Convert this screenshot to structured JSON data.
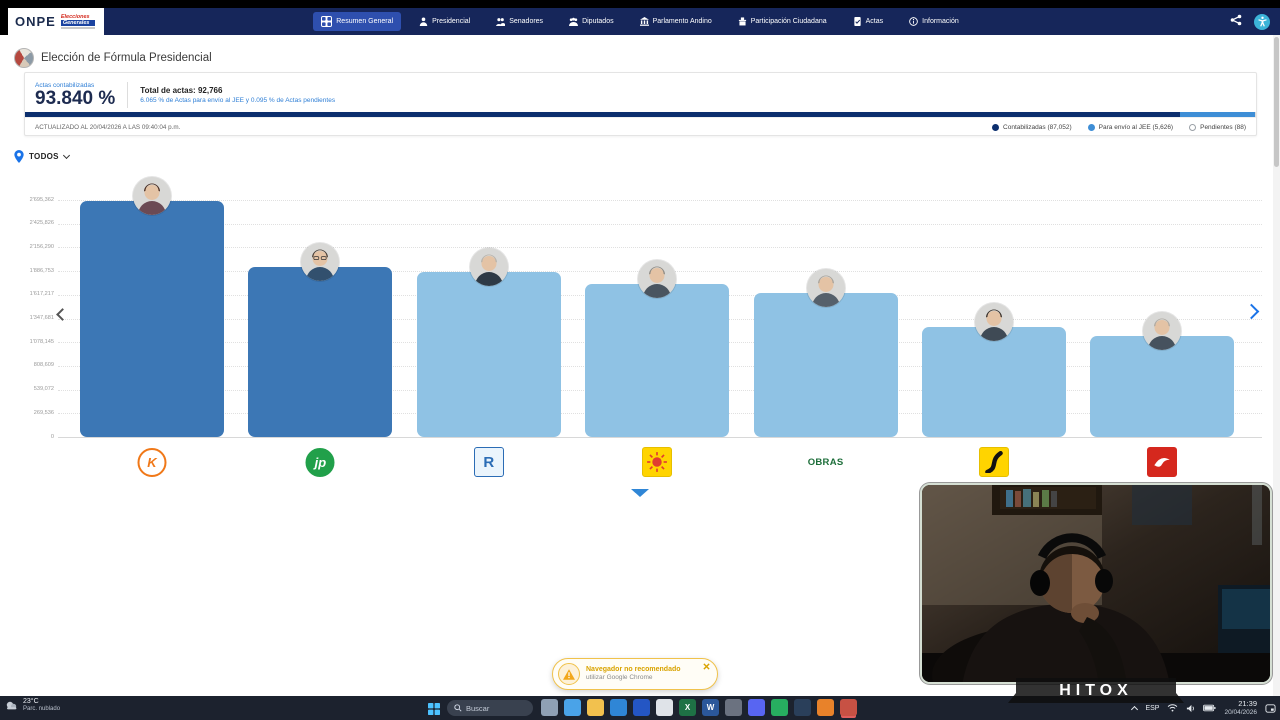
{
  "nav": {
    "brand": {
      "name": "ONPE",
      "badge_line1": "Elecciones",
      "badge_line2": "Generales"
    },
    "items": [
      {
        "label": "Resumen General",
        "active": true
      },
      {
        "label": "Presidencial"
      },
      {
        "label": "Senadores"
      },
      {
        "label": "Diputados"
      },
      {
        "label": "Parlamento Andino"
      },
      {
        "label": "Participación Ciudadana"
      },
      {
        "label": "Actas"
      },
      {
        "label": "Información"
      }
    ]
  },
  "page": {
    "title": "Elección de Fórmula Presidencial"
  },
  "summary": {
    "label": "Actas contabilizadas",
    "percent": "93.840 %",
    "total": "Total de actas: 92,766",
    "subtext": "6.065 % de Actas para envío al JEE y 0.095 % de Actas pendientes",
    "updated": "ACTUALIZADO AL 20/04/2026 A LAS 09:40:04 p.m.",
    "legend": [
      {
        "label": "Contabilizadas (87,052)",
        "color": "#0c2f6e"
      },
      {
        "label": "Para envío al JEE (5,626)",
        "color": "#3e8ed6"
      },
      {
        "label": "Pendientes (88)",
        "color": "#ffffff",
        "outline": true
      }
    ],
    "progress": [
      {
        "name": "contabilizadas",
        "pct": 93.84,
        "color": "#0c2f6e"
      },
      {
        "name": "para-envio-jee",
        "pct": 6.065,
        "color": "#3e8ed6"
      },
      {
        "name": "pendientes",
        "pct": 0.095,
        "color": "#dcdcdc"
      }
    ]
  },
  "filter": {
    "label": "TODOS"
  },
  "chart_data": {
    "type": "bar",
    "title": "Elección de Fórmula Presidencial",
    "categories": [
      "K",
      "jp",
      "R",
      "Sol",
      "OBRAS",
      "K amarillo",
      "Ave roja"
    ],
    "values": [
      2684000,
      1933000,
      1877000,
      1740000,
      1638000,
      1251000,
      1149000
    ],
    "ylim": [
      0,
      2695362
    ],
    "ytick_labels": [
      "2'695,362",
      "2'425,826",
      "2'156,290",
      "1'886,753",
      "1'617,217",
      "1'347,681",
      "1'078,145",
      "808,609",
      "539,072",
      "269,536",
      "0"
    ],
    "bar_colors": [
      "#3c77b5",
      "#3c77b5",
      "#8fc2e4",
      "#8fc2e4",
      "#8fc2e4",
      "#8fc2e4",
      "#8fc2e4"
    ],
    "grid": true,
    "legend_position": "none",
    "xlabel": "",
    "ylabel": ""
  },
  "parties": [
    {
      "style": "circle",
      "text": "K",
      "bg": "#ffffff",
      "fg": "#f07818",
      "border": "#f07818",
      "avatar": {
        "hair": "#4a2f24",
        "shirt": "#6b4a54"
      }
    },
    {
      "style": "circle",
      "text": "jp",
      "bg": "#21a04a",
      "fg": "#ffffff",
      "border": "#21a04a",
      "avatar": {
        "hair": "#4c423a",
        "shirt": "#32506e",
        "glasses": true
      }
    },
    {
      "style": "square",
      "text": "R",
      "bg": "#eaf4fc",
      "fg": "#2b6cb5",
      "border": "#2b6cb5",
      "avatar": {
        "hair": "#b9b4ac",
        "shirt": "#2e3a46"
      }
    },
    {
      "style": "square",
      "glyph": "sun",
      "bg": "#ffd400",
      "border": "#e6bf00",
      "avatar": {
        "hair": "#8f8b84",
        "shirt": "#4a5560"
      }
    },
    {
      "style": "text",
      "text": "OBRAS",
      "fg": "#1d6e3a",
      "avatar": {
        "hair": "#a9a49c",
        "shirt": "#55606b"
      }
    },
    {
      "style": "square",
      "glyph": "road",
      "bg": "#ffd400",
      "border": "#e6bf00",
      "avatar": {
        "hair": "#3a322c",
        "shirt": "#3f4a55"
      }
    },
    {
      "style": "square",
      "glyph": "bird",
      "bg": "#d5281e",
      "border": "#d5281e",
      "avatar": {
        "hair": "#b0aba3",
        "shirt": "#46525e"
      }
    }
  ],
  "toast": {
    "title": "Navegador no recomendado",
    "subtitle": "utilizar Google Chrome"
  },
  "overlay": {
    "watermark": "HITOX"
  },
  "taskbar": {
    "search": "Buscar",
    "lang": "ESP",
    "time": "21:39",
    "date": "20/04/2026",
    "weather_temp": "23°C",
    "weather_desc": "Parc. nublado",
    "apps": [
      {
        "name": "task-view",
        "color": "#8fa0b4"
      },
      {
        "name": "widgets",
        "color": "#4aa3e8"
      },
      {
        "name": "file-explorer",
        "color": "#f2c14e"
      },
      {
        "name": "edge",
        "color": "#2f86d6"
      },
      {
        "name": "store",
        "color": "#2456c4"
      },
      {
        "name": "mail",
        "color": "#dfe3e8"
      },
      {
        "name": "excel",
        "color": "#1e7145",
        "glyph": "X"
      },
      {
        "name": "word",
        "color": "#2b579a",
        "glyph": "W"
      },
      {
        "name": "settings",
        "color": "#6b7280"
      },
      {
        "name": "discord",
        "color": "#5865f2"
      },
      {
        "name": "whatsapp",
        "color": "#27ae60"
      },
      {
        "name": "steam",
        "color": "#2a3f5a"
      },
      {
        "name": "firefox",
        "color": "#e8822a"
      },
      {
        "name": "stream-app",
        "color": "#c0392b",
        "active": true
      }
    ]
  }
}
